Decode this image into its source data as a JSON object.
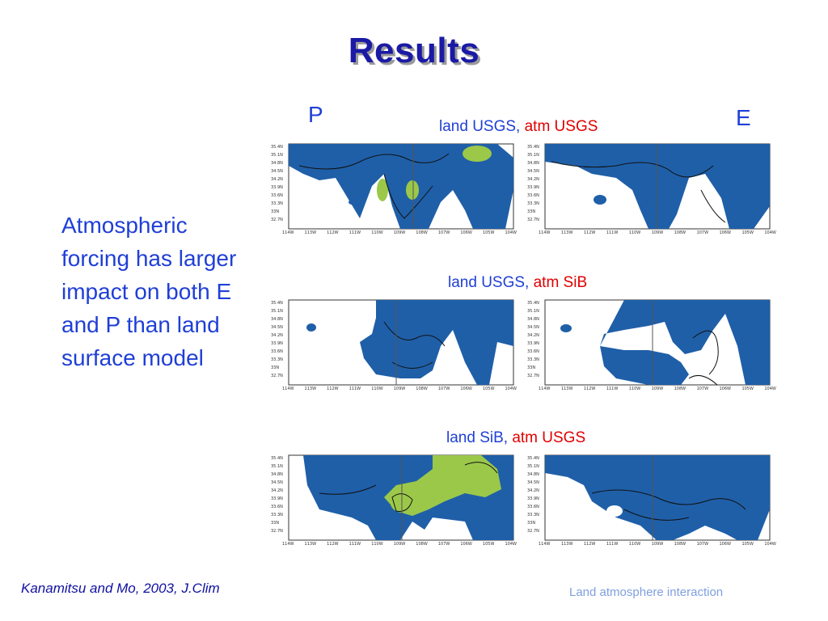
{
  "slide": {
    "title": "Results",
    "col_left_label": "P",
    "col_right_label": "E",
    "rows": [
      {
        "land": "land USGS,",
        "atm": "atm USGS"
      },
      {
        "land": "land USGS,",
        "atm": "atm SiB"
      },
      {
        "land": "land SiB,",
        "atm": "atm USGS"
      }
    ],
    "body_text": "Atmospheric forcing has larger impact on both E and P than land surface model",
    "footer_citation": "Kanamitsu and Mo, 2003, J.Clim",
    "footer_topic": "Land atmosphere interaction"
  },
  "maps": {
    "lat_labels_top": [
      "35.4N",
      "35.1N",
      "34.8N",
      "34.5N",
      "34.2N",
      "33.9N",
      "33.6N",
      "33.3N",
      "33N",
      "32.7N"
    ],
    "lon_labels_p": [
      "114W",
      "113W",
      "112W",
      "111W",
      "110W",
      "109W",
      "108W",
      "107W",
      "106W",
      "105W",
      "104W"
    ],
    "lon_labels_e": [
      "114W",
      "113W",
      "112W",
      "111W",
      "110W",
      "109W",
      "108W",
      "107W",
      "106W",
      "105W",
      "104W"
    ]
  },
  "colors": {
    "title": "#1a1aa6",
    "text": "#1f3fd6",
    "accent_red": "#e00000",
    "map_blue": "#1f5fa8",
    "map_green": "#9cc84a"
  }
}
